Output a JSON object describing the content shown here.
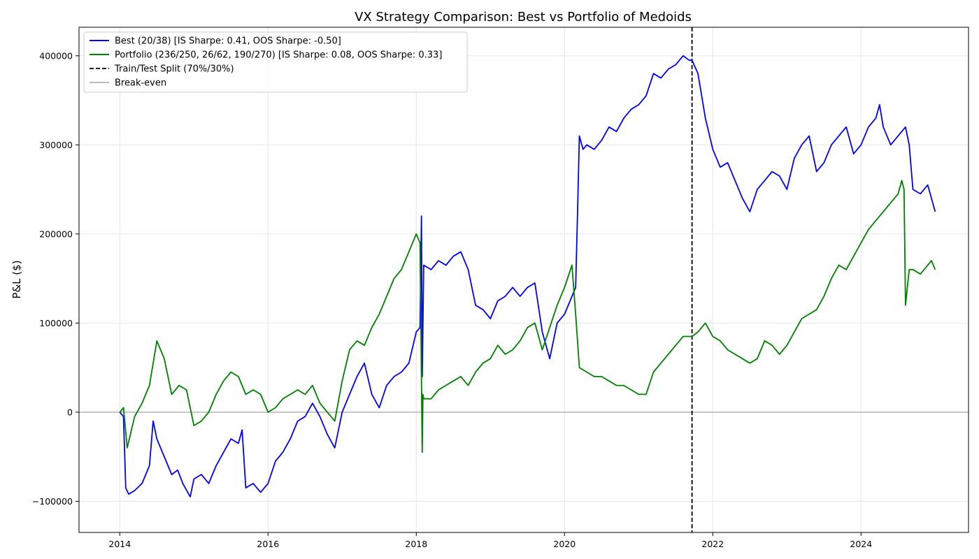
{
  "chart_data": {
    "type": "line",
    "title": "VX Strategy Comparison: Best vs Portfolio of Medoids",
    "xlabel": "",
    "ylabel": "P&L ($)",
    "xlim": [
      2013.45,
      2025.45
    ],
    "ylim": [
      -135000,
      432000
    ],
    "x_ticks": [
      2014,
      2016,
      2018,
      2020,
      2022,
      2024
    ],
    "x_tick_labels": [
      "2014",
      "2016",
      "2018",
      "2020",
      "2022",
      "2024"
    ],
    "y_ticks": [
      -100000,
      0,
      100000,
      200000,
      300000,
      400000
    ],
    "y_tick_labels": [
      "−100000",
      "0",
      "100000",
      "200000",
      "300000",
      "400000"
    ],
    "grid": true,
    "legend_position": "upper-left",
    "train_test_split_x": 2021.72,
    "breakeven_y": 0,
    "series": [
      {
        "name": "Best (20/38) [IS Sharpe: 0.41, OOS Sharpe: -0.50]",
        "color": "#0000ff",
        "style": "solid",
        "x": [
          2014.0,
          2014.05,
          2014.08,
          2014.12,
          2014.2,
          2014.3,
          2014.4,
          2014.45,
          2014.5,
          2014.6,
          2014.7,
          2014.78,
          2014.85,
          2014.95,
          2015.0,
          2015.1,
          2015.2,
          2015.3,
          2015.4,
          2015.5,
          2015.6,
          2015.65,
          2015.7,
          2015.8,
          2015.9,
          2016.0,
          2016.1,
          2016.2,
          2016.3,
          2016.4,
          2016.5,
          2016.6,
          2016.7,
          2016.8,
          2016.9,
          2017.0,
          2017.1,
          2017.2,
          2017.3,
          2017.4,
          2017.5,
          2017.6,
          2017.7,
          2017.8,
          2017.9,
          2018.0,
          2018.05,
          2018.07,
          2018.08,
          2018.1,
          2018.2,
          2018.3,
          2018.4,
          2018.5,
          2018.6,
          2018.7,
          2018.8,
          2018.9,
          2019.0,
          2019.1,
          2019.2,
          2019.3,
          2019.4,
          2019.5,
          2019.6,
          2019.7,
          2019.75,
          2019.8,
          2019.9,
          2020.0,
          2020.1,
          2020.15,
          2020.18,
          2020.2,
          2020.25,
          2020.3,
          2020.4,
          2020.5,
          2020.6,
          2020.7,
          2020.8,
          2020.9,
          2021.0,
          2021.1,
          2021.2,
          2021.3,
          2021.4,
          2021.5,
          2021.6,
          2021.68,
          2021.72,
          2021.8,
          2021.9,
          2022.0,
          2022.1,
          2022.2,
          2022.3,
          2022.4,
          2022.5,
          2022.6,
          2022.7,
          2022.8,
          2022.9,
          2023.0,
          2023.1,
          2023.2,
          2023.3,
          2023.4,
          2023.5,
          2023.6,
          2023.7,
          2023.8,
          2023.9,
          2024.0,
          2024.1,
          2024.2,
          2024.25,
          2024.3,
          2024.4,
          2024.5,
          2024.6,
          2024.65,
          2024.7,
          2024.8,
          2024.9,
          2024.95,
          2025.0
        ],
        "y": [
          0,
          -5000,
          -85000,
          -92000,
          -88000,
          -80000,
          -60000,
          -10000,
          -30000,
          -50000,
          -70000,
          -65000,
          -80000,
          -95000,
          -75000,
          -70000,
          -80000,
          -60000,
          -45000,
          -30000,
          -35000,
          -20000,
          -85000,
          -80000,
          -90000,
          -80000,
          -55000,
          -45000,
          -30000,
          -10000,
          -5000,
          10000,
          -5000,
          -25000,
          -40000,
          0,
          20000,
          40000,
          55000,
          20000,
          5000,
          30000,
          40000,
          45000,
          55000,
          90000,
          95000,
          220000,
          40000,
          165000,
          160000,
          170000,
          165000,
          175000,
          180000,
          160000,
          120000,
          115000,
          105000,
          125000,
          130000,
          140000,
          130000,
          140000,
          145000,
          90000,
          75000,
          60000,
          100000,
          110000,
          130000,
          140000,
          240000,
          310000,
          295000,
          300000,
          295000,
          305000,
          320000,
          315000,
          330000,
          340000,
          345000,
          355000,
          380000,
          375000,
          385000,
          390000,
          400000,
          395000,
          395000,
          380000,
          330000,
          295000,
          275000,
          280000,
          260000,
          240000,
          225000,
          250000,
          260000,
          270000,
          265000,
          250000,
          285000,
          300000,
          310000,
          270000,
          280000,
          300000,
          310000,
          320000,
          290000,
          300000,
          320000,
          330000,
          345000,
          320000,
          300000,
          310000,
          320000,
          300000,
          250000,
          245000,
          255000,
          240000,
          225000
        ]
      },
      {
        "name": "Portfolio (236/250, 26/62, 190/270) [IS Sharpe: 0.08, OOS Sharpe: 0.33]",
        "color": "#008000",
        "style": "solid",
        "x": [
          2014.0,
          2014.05,
          2014.1,
          2014.2,
          2014.3,
          2014.4,
          2014.5,
          2014.55,
          2014.6,
          2014.7,
          2014.8,
          2014.9,
          2015.0,
          2015.1,
          2015.2,
          2015.3,
          2015.4,
          2015.5,
          2015.6,
          2015.7,
          2015.8,
          2015.9,
          2016.0,
          2016.1,
          2016.2,
          2016.3,
          2016.4,
          2016.5,
          2016.6,
          2016.7,
          2016.8,
          2016.9,
          2017.0,
          2017.1,
          2017.2,
          2017.3,
          2017.4,
          2017.5,
          2017.6,
          2017.7,
          2017.8,
          2017.9,
          2018.0,
          2018.05,
          2018.08,
          2018.09,
          2018.1,
          2018.2,
          2018.3,
          2018.4,
          2018.5,
          2018.6,
          2018.7,
          2018.8,
          2018.9,
          2019.0,
          2019.1,
          2019.2,
          2019.3,
          2019.4,
          2019.5,
          2019.6,
          2019.7,
          2019.8,
          2019.9,
          2020.0,
          2020.1,
          2020.15,
          2020.2,
          2020.3,
          2020.4,
          2020.5,
          2020.6,
          2020.7,
          2020.8,
          2020.9,
          2021.0,
          2021.1,
          2021.2,
          2021.3,
          2021.4,
          2021.5,
          2021.6,
          2021.72,
          2021.8,
          2021.9,
          2022.0,
          2022.1,
          2022.2,
          2022.3,
          2022.4,
          2022.5,
          2022.6,
          2022.7,
          2022.8,
          2022.9,
          2023.0,
          2023.1,
          2023.2,
          2023.3,
          2023.4,
          2023.5,
          2023.6,
          2023.7,
          2023.8,
          2023.9,
          2024.0,
          2024.1,
          2024.2,
          2024.3,
          2024.4,
          2024.5,
          2024.55,
          2024.58,
          2024.6,
          2024.65,
          2024.7,
          2024.8,
          2024.9,
          2024.95,
          2025.0
        ],
        "y": [
          0,
          5000,
          -40000,
          -5000,
          10000,
          30000,
          80000,
          70000,
          60000,
          20000,
          30000,
          25000,
          -15000,
          -10000,
          0,
          20000,
          35000,
          45000,
          40000,
          20000,
          25000,
          20000,
          0,
          5000,
          15000,
          20000,
          25000,
          20000,
          30000,
          10000,
          0,
          -10000,
          35000,
          70000,
          80000,
          75000,
          95000,
          110000,
          130000,
          150000,
          160000,
          180000,
          200000,
          190000,
          -45000,
          20000,
          15000,
          15000,
          25000,
          30000,
          35000,
          40000,
          30000,
          45000,
          55000,
          60000,
          75000,
          65000,
          70000,
          80000,
          95000,
          100000,
          70000,
          95000,
          120000,
          140000,
          165000,
          110000,
          50000,
          45000,
          40000,
          40000,
          35000,
          30000,
          30000,
          25000,
          20000,
          20000,
          45000,
          55000,
          65000,
          75000,
          85000,
          85000,
          90000,
          100000,
          85000,
          80000,
          70000,
          65000,
          60000,
          55000,
          60000,
          80000,
          75000,
          65000,
          75000,
          90000,
          105000,
          110000,
          115000,
          130000,
          150000,
          165000,
          160000,
          175000,
          190000,
          205000,
          215000,
          225000,
          235000,
          245000,
          260000,
          250000,
          120000,
          160000,
          160000,
          155000,
          165000,
          170000,
          160000
        ]
      }
    ],
    "legend": [
      {
        "label": "Best (20/38) [IS Sharpe: 0.41, OOS Sharpe: -0.50]",
        "color": "#0000ff",
        "style": "solid"
      },
      {
        "label": "Portfolio (236/250, 26/62, 190/270) [IS Sharpe: 0.08, OOS Sharpe: 0.33]",
        "color": "#008000",
        "style": "solid"
      },
      {
        "label": "Train/Test Split (70%/30%)",
        "color": "#000000",
        "style": "dashed"
      },
      {
        "label": "Break-even",
        "color": "#bbbbbb",
        "style": "solid"
      }
    ]
  }
}
